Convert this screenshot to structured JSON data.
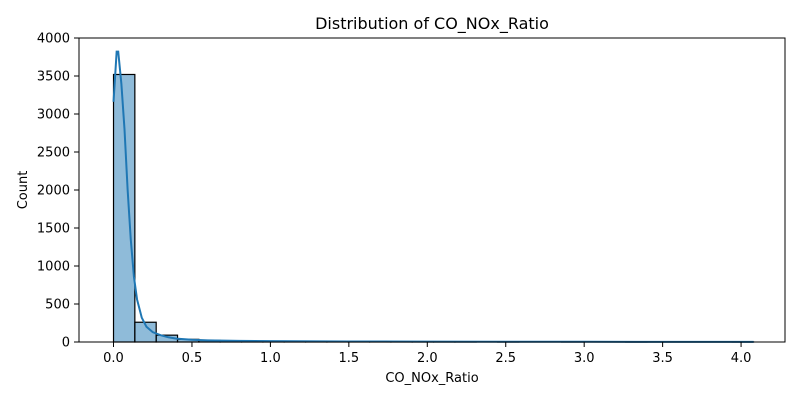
{
  "chart_data": {
    "type": "bar",
    "title": "Distribution of CO_NOx_Ratio",
    "xlabel": "CO_NOx_Ratio",
    "ylabel": "Count",
    "xlim": [
      -0.22,
      4.28
    ],
    "ylim": [
      0,
      4000
    ],
    "xticks": [
      0.0,
      0.5,
      1.0,
      1.5,
      2.0,
      2.5,
      3.0,
      3.5,
      4.0
    ],
    "xtick_labels": [
      "0.0",
      "0.5",
      "1.0",
      "1.5",
      "2.0",
      "2.5",
      "3.0",
      "3.5",
      "4.0"
    ],
    "yticks": [
      0,
      500,
      1000,
      1500,
      2000,
      2500,
      3000,
      3500,
      4000
    ],
    "ytick_labels": [
      "0",
      "500",
      "1000",
      "1500",
      "2000",
      "2500",
      "3000",
      "3500",
      "4000"
    ],
    "grid": false,
    "bar_color": "#1f77b4",
    "bar_alpha": 0.5,
    "edge_color": "#000000",
    "kde_color": "#1f77b4",
    "bin_edges": [
      0.0,
      0.136,
      0.272,
      0.408,
      0.544,
      0.68,
      0.816,
      0.952,
      1.088,
      1.224,
      1.36,
      1.496,
      1.632,
      1.768,
      1.904,
      2.04,
      2.176,
      2.312,
      2.448,
      2.584,
      2.72,
      2.856,
      2.992,
      3.128,
      3.264,
      3.4,
      3.536,
      3.672,
      3.808,
      3.944,
      4.08
    ],
    "counts": [
      3520,
      260,
      90,
      35,
      20,
      12,
      8,
      5,
      4,
      3,
      2,
      2,
      1,
      1,
      1,
      1,
      1,
      0,
      1,
      0,
      0,
      1,
      0,
      0,
      1,
      0,
      0,
      0,
      0,
      1
    ],
    "kde": {
      "x": [
        0.0,
        0.02,
        0.03,
        0.05,
        0.07,
        0.09,
        0.11,
        0.13,
        0.15,
        0.18,
        0.21,
        0.25,
        0.3,
        0.35,
        0.4,
        0.5,
        0.6,
        0.8,
        1.0,
        1.5,
        2.0,
        2.5,
        3.0,
        3.5,
        4.08
      ],
      "y": [
        3160,
        3820,
        3820,
        3400,
        2800,
        2000,
        1350,
        860,
        560,
        320,
        200,
        130,
        90,
        62,
        45,
        30,
        22,
        15,
        11,
        7,
        5,
        4,
        3,
        2,
        2
      ]
    }
  }
}
